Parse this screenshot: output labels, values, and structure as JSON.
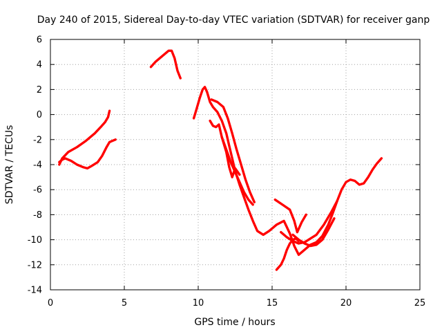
{
  "chart_data": {
    "type": "scatter",
    "title": "Day 240 of 2015, Sidereal Day-to-day VTEC variation (SDTVAR) for receiver ganp",
    "xlabel": "GPS time / hours",
    "ylabel": "SDTVAR / TECUs",
    "xlim": [
      0,
      25
    ],
    "ylim": [
      -14,
      6
    ],
    "xticks": [
      0,
      5,
      10,
      15,
      20,
      25
    ],
    "yticks": [
      -14,
      -12,
      -10,
      -8,
      -6,
      -4,
      -2,
      0,
      2,
      4,
      6
    ],
    "grid": true,
    "legend": "none",
    "marker_color": "#ff0000",
    "series": [
      {
        "x": [
          0.6,
          0.8,
          1.2,
          1.8,
          2.4,
          3.0,
          3.4,
          3.7,
          3.9,
          4.0
        ],
        "y": [
          -4.0,
          -3.5,
          -3.0,
          -2.6,
          -2.1,
          -1.5,
          -1.0,
          -0.6,
          -0.2,
          0.3
        ]
      },
      {
        "x": [
          0.6,
          0.8,
          1.0,
          1.4,
          1.8,
          2.2,
          2.5,
          2.8,
          3.2,
          3.5,
          3.8,
          4.0,
          4.2,
          4.4
        ],
        "y": [
          -3.8,
          -3.6,
          -3.5,
          -3.7,
          -4.0,
          -4.2,
          -4.3,
          -4.1,
          -3.8,
          -3.3,
          -2.6,
          -2.2,
          -2.1,
          -2.0
        ]
      },
      {
        "x": [
          6.8,
          7.1,
          7.4,
          7.7,
          8.0,
          8.2,
          8.4,
          8.6,
          8.8
        ],
        "y": [
          3.8,
          4.2,
          4.5,
          4.8,
          5.1,
          5.1,
          4.5,
          3.5,
          2.9
        ]
      },
      {
        "x": [
          9.7,
          9.9,
          10.1,
          10.3,
          10.45,
          10.6,
          10.8,
          11.0,
          11.3,
          11.6,
          11.9,
          12.1,
          12.3,
          12.5,
          12.8,
          13.1,
          13.4,
          13.7,
          14.0,
          14.4,
          14.8,
          15.3,
          15.8,
          16.2,
          16.5,
          16.8,
          17.2,
          17.6,
          18.0,
          18.4,
          18.8,
          19.1,
          19.4,
          19.7,
          20.0,
          20.3,
          20.6,
          20.9,
          21.2,
          21.5,
          21.8,
          22.1,
          22.4
        ],
        "y": [
          -0.3,
          0.5,
          1.3,
          2.0,
          2.2,
          1.8,
          1.0,
          0.6,
          0.2,
          -0.5,
          -1.5,
          -2.5,
          -3.5,
          -4.5,
          -5.6,
          -6.6,
          -7.6,
          -8.5,
          -9.3,
          -9.6,
          -9.3,
          -8.8,
          -8.5,
          -9.5,
          -10.5,
          -11.2,
          -10.8,
          -10.4,
          -10.2,
          -9.7,
          -8.8,
          -7.9,
          -6.9,
          -6.0,
          -5.4,
          -5.2,
          -5.3,
          -5.6,
          -5.5,
          -5.0,
          -4.4,
          -3.9,
          -3.5
        ]
      },
      {
        "x": [
          10.8,
          11.0,
          11.2,
          11.4,
          11.6,
          11.9,
          12.2,
          12.5,
          12.8,
          13.1,
          13.4,
          13.7
        ],
        "y": [
          -0.5,
          -0.9,
          -1.0,
          -0.8,
          -1.8,
          -2.8,
          -3.8,
          -4.6,
          -5.4,
          -6.2,
          -6.8,
          -7.2
        ]
      },
      {
        "x": [
          10.9,
          11.3,
          11.7,
          12.0,
          12.3,
          12.6,
          12.9,
          13.2,
          13.5,
          13.8
        ],
        "y": [
          1.2,
          1.0,
          0.6,
          -0.3,
          -1.5,
          -2.8,
          -4.0,
          -5.2,
          -6.2,
          -7.0
        ]
      },
      {
        "x": [
          11.6,
          11.9,
          12.1,
          12.3,
          12.5,
          12.8
        ],
        "y": [
          -1.8,
          -3.0,
          -4.2,
          -5.0,
          -4.3,
          -4.8
        ]
      },
      {
        "x": [
          15.3,
          15.6,
          15.8,
          16.0,
          16.2,
          16.4,
          16.6,
          16.8
        ],
        "y": [
          -12.4,
          -12.0,
          -11.5,
          -10.8,
          -10.3,
          -10.0,
          -9.9,
          -10.1
        ]
      },
      {
        "x": [
          15.2,
          15.7,
          16.2,
          16.5,
          16.7,
          17.0,
          17.3
        ],
        "y": [
          -6.8,
          -7.2,
          -7.6,
          -8.5,
          -9.4,
          -8.6,
          -8.0
        ]
      },
      {
        "x": [
          15.6,
          16.0,
          16.4,
          16.8,
          17.2,
          17.6,
          18.0,
          18.5,
          19.0,
          19.4
        ],
        "y": [
          -9.4,
          -9.8,
          -10.1,
          -10.3,
          -10.2,
          -9.9,
          -9.6,
          -8.8,
          -7.8,
          -6.9
        ]
      },
      {
        "x": [
          16.4,
          16.8,
          17.2,
          17.6,
          18.0,
          18.4,
          18.8,
          19.2
        ],
        "y": [
          -9.6,
          -10.0,
          -10.3,
          -10.5,
          -10.4,
          -10.0,
          -9.2,
          -8.3
        ]
      }
    ]
  }
}
